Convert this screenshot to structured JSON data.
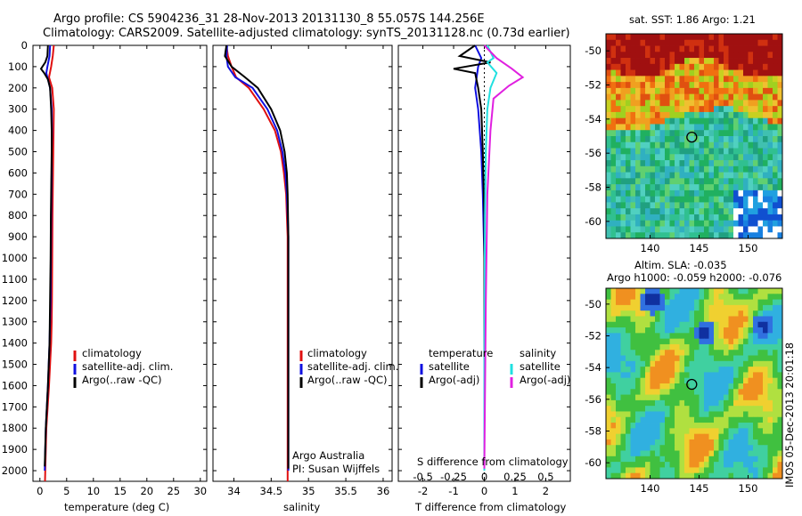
{
  "header": {
    "title_line1": "Argo profile: CS 5904236_31 28-Nov-2013 20131130_8 55.057S 144.256E",
    "title_line2": "Climatology: CARS2009. Satellite-adjusted climatology: synTS_20131128.nc (0.73d earlier)"
  },
  "side_stamp": "IMOS 05-Dec-2013 20:01:18",
  "colors": {
    "climatology": "#e01010",
    "satellite": "#1010e0",
    "argo": "#000000",
    "sat_salinity": "#20e0e0",
    "argo_salinity_adj": "#e020e0"
  },
  "chart_data": [
    {
      "type": "line",
      "id": "temperature",
      "xlabel": "temperature (deg C)",
      "ylim": [
        2050,
        0
      ],
      "xlim": [
        -1.3,
        31.2
      ],
      "yticks": [
        0,
        100,
        200,
        300,
        400,
        500,
        600,
        700,
        800,
        900,
        1000,
        1100,
        1200,
        1300,
        1400,
        1500,
        1600,
        1700,
        1800,
        1900,
        2000
      ],
      "xticks": [
        0,
        5,
        10,
        15,
        20,
        25,
        30
      ],
      "legend": [
        "climatology",
        "satellite-adj. clim.",
        "Argo(..raw -QC)"
      ],
      "series": [
        {
          "name": "climatology",
          "color": "#e01010",
          "x": [
            2.6,
            2.4,
            2.1,
            1.7,
            2.3,
            2.6,
            2.55,
            2.5,
            2.45,
            2.4,
            2.35,
            2.3,
            2.25,
            2.2,
            2.1,
            1.9,
            1.7,
            1.45,
            1.2,
            0.95
          ],
          "y": [
            0,
            50,
            100,
            150,
            200,
            300,
            400,
            500,
            600,
            700,
            800,
            1000,
            1200,
            1300,
            1400,
            1500,
            1600,
            1700,
            1800,
            2050
          ]
        },
        {
          "name": "satellite-adj. clim.",
          "color": "#1010e0",
          "x": [
            1.9,
            1.8,
            1.4,
            1.2,
            1.9,
            2.2,
            2.25,
            2.2,
            2.2,
            2.15,
            2.1,
            2.05,
            2.0,
            1.9,
            1.8,
            1.65,
            1.5,
            1.3,
            1.1,
            0.9
          ],
          "y": [
            0,
            50,
            100,
            130,
            200,
            300,
            400,
            500,
            600,
            700,
            800,
            1000,
            1200,
            1300,
            1400,
            1500,
            1600,
            1700,
            1800,
            2000
          ]
        },
        {
          "name": "Argo(..raw -QC)",
          "color": "#000000",
          "x": [
            1.5,
            1.4,
            1.0,
            0.2,
            0.8,
            1.5,
            1.9,
            2.1,
            2.2,
            2.2,
            2.15,
            2.1,
            2.05,
            2.0,
            1.9,
            1.8,
            1.65,
            1.5,
            1.3,
            1.1,
            0.9
          ],
          "y": [
            0,
            50,
            80,
            110,
            130,
            160,
            200,
            300,
            400,
            500,
            600,
            700,
            800,
            1000,
            1200,
            1400,
            1500,
            1600,
            1700,
            1800,
            1980
          ]
        }
      ]
    },
    {
      "type": "line",
      "id": "salinity",
      "xlabel": "salinity",
      "ylim": [
        2050,
        0
      ],
      "xlim": [
        33.72,
        36.12
      ],
      "xticks": [
        34,
        34.5,
        35,
        35.5,
        36
      ],
      "legend": [
        "climatology",
        "satellite-adj. clim.",
        "Argo(..raw -QC)"
      ],
      "note_line1": "Argo Australia",
      "note_line2": "PI: Susan Wijffels",
      "series": [
        {
          "name": "climatology",
          "color": "#e01010",
          "x": [
            33.9,
            33.92,
            33.97,
            34.03,
            34.2,
            34.4,
            34.55,
            34.63,
            34.67,
            34.7,
            34.71,
            34.72,
            34.72,
            34.72,
            34.72,
            34.72,
            34.72
          ],
          "y": [
            0,
            50,
            100,
            150,
            200,
            300,
            400,
            500,
            600,
            700,
            800,
            900,
            1000,
            1200,
            1500,
            1800,
            2050
          ]
        },
        {
          "name": "satellite-adj. clim.",
          "color": "#1010e0",
          "x": [
            33.91,
            33.9,
            33.92,
            34.02,
            34.25,
            34.45,
            34.58,
            34.65,
            34.69,
            34.71,
            34.72,
            34.73,
            34.73,
            34.73,
            34.73,
            34.73
          ],
          "y": [
            0,
            50,
            100,
            150,
            200,
            300,
            400,
            500,
            600,
            700,
            800,
            900,
            1000,
            1200,
            1500,
            2000
          ]
        },
        {
          "name": "Argo(..raw -QC)",
          "color": "#000000",
          "x": [
            33.9,
            33.88,
            33.97,
            34.15,
            34.32,
            34.5,
            34.62,
            34.68,
            34.71,
            34.72,
            34.73,
            34.73,
            34.73,
            34.73
          ],
          "y": [
            0,
            50,
            100,
            150,
            200,
            300,
            400,
            500,
            600,
            700,
            900,
            1200,
            1500,
            1990
          ]
        }
      ]
    },
    {
      "type": "line",
      "id": "difference",
      "xlabel": "T difference from climatology",
      "xlabel_top": "S difference from climatology",
      "ylim": [
        2050,
        0
      ],
      "xlim": [
        -2.8,
        2.8
      ],
      "xticks": [
        -2,
        -1,
        0,
        1,
        2
      ],
      "xticks_top": [
        "-0.5",
        "-0.25",
        "0",
        "0.25",
        "0.5"
      ],
      "legend_left_title": "temperature",
      "legend_right_title": "salinity",
      "legend_left": [
        "satellite",
        "Argo(-adj)"
      ],
      "legend_right": [
        "satellite",
        "Argo(-adj)"
      ],
      "series": [
        {
          "name": "T satellite",
          "color": "#1010e0",
          "x": [
            -0.3,
            -0.1,
            -0.2,
            -0.3,
            -0.2,
            -0.1,
            -0.05,
            0,
            0,
            0
          ],
          "y": [
            0,
            60,
            100,
            200,
            300,
            500,
            700,
            1000,
            1500,
            2000
          ]
        },
        {
          "name": "T Argo(-adj)",
          "color": "#000000",
          "x": [
            -0.3,
            -0.8,
            0.2,
            -1.0,
            -0.3,
            -0.2,
            -0.1,
            -0.05,
            0,
            0,
            0
          ],
          "y": [
            0,
            50,
            80,
            110,
            130,
            200,
            300,
            500,
            800,
            1500,
            1990
          ]
        },
        {
          "name": "S satellite",
          "color": "#20e0e0",
          "x": [
            0.1,
            0.3,
            0.1,
            0.4,
            0.2,
            0.1,
            0.05,
            0.02,
            0,
            0
          ],
          "y": [
            0,
            60,
            80,
            130,
            200,
            300,
            500,
            800,
            1500,
            2000
          ]
        },
        {
          "name": "S Argo(-adj)",
          "color": "#e020e0",
          "x": [
            0.0,
            0.4,
            0.9,
            1.25,
            0.8,
            0.3,
            0.2,
            0.1,
            0.05,
            0
          ],
          "y": [
            0,
            60,
            110,
            150,
            190,
            250,
            400,
            700,
            1200,
            1990
          ]
        }
      ]
    },
    {
      "type": "heatmap",
      "id": "sst_map",
      "title": "sat. SST: 1.86 Argo: 1.21",
      "xticks": [
        140,
        145,
        150
      ],
      "yticks": [
        -50,
        -52,
        -54,
        -56,
        -58,
        -60
      ],
      "xlim": [
        135.5,
        153.5
      ],
      "ylim": [
        -61,
        -49
      ],
      "marker": {
        "lon": 144.256,
        "lat": -55.057
      }
    },
    {
      "type": "heatmap",
      "id": "sla_map",
      "title": "Altim. SLA: -0.035",
      "subtitle": "Argo h1000: -0.059 h2000: -0.076",
      "xticks": [
        140,
        145,
        150
      ],
      "yticks": [
        -50,
        -52,
        -54,
        -56,
        -58,
        -60
      ],
      "xlim": [
        135.5,
        153.5
      ],
      "ylim": [
        -61,
        -49
      ],
      "marker": {
        "lon": 144.256,
        "lat": -55.057
      }
    }
  ]
}
